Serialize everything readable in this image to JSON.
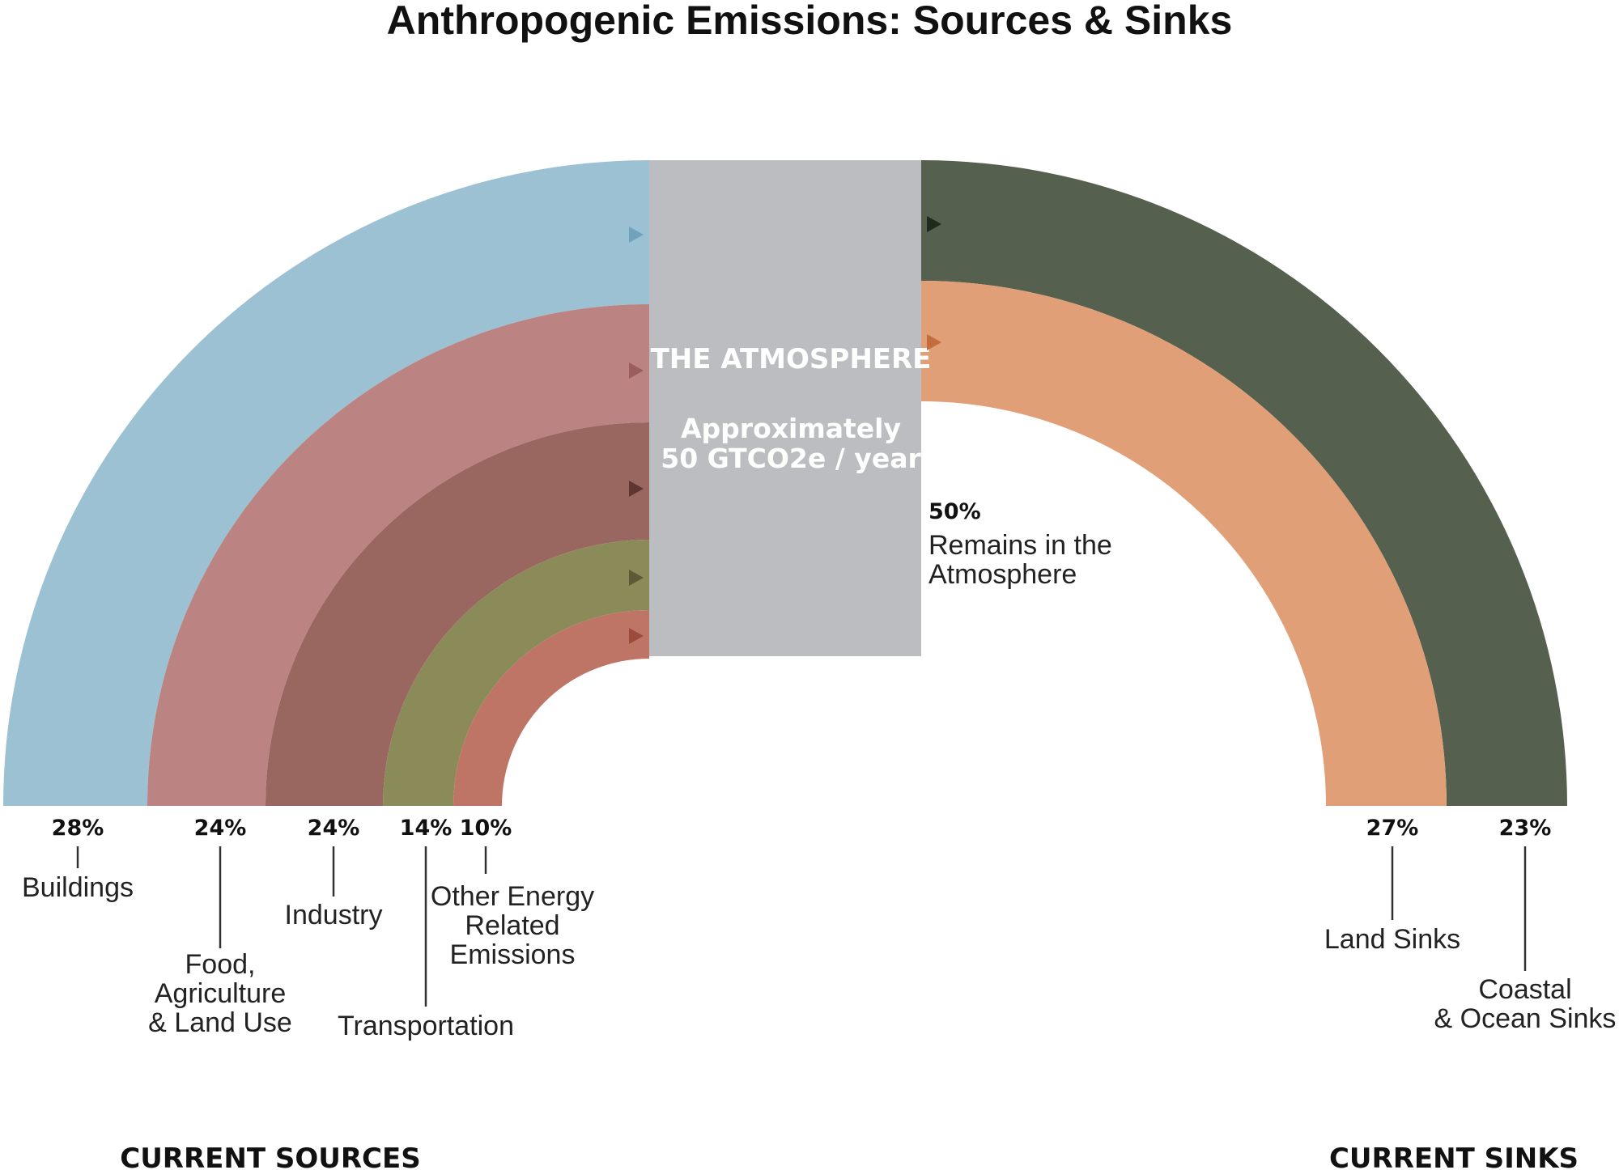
{
  "title": "Anthropogenic Emissions: Sources & Sinks",
  "atmosphere": {
    "title": "THE ATMOSPHERE",
    "line1": "Approximately",
    "line2": "50 GTCO2e / year",
    "color": "#BBBDC0"
  },
  "chart_data": {
    "type": "diagram",
    "sources": [
      {
        "percent": "28%",
        "label": [
          "Buildings"
        ],
        "value": 28,
        "color": "#9CC1D3",
        "arrow_color": "#6FA3BD"
      },
      {
        "percent": "24%",
        "label": [
          "Food,",
          "Agriculture",
          "& Land Use"
        ],
        "value": 24,
        "color": "#BB8482",
        "arrow_color": "#9B5E5C"
      },
      {
        "percent": "24%",
        "label": [
          "Industry"
        ],
        "value": 24,
        "color": "#9A6760",
        "arrow_color": "#5E3631"
      },
      {
        "percent": "14%",
        "label": [
          "Transportation"
        ],
        "value": 14,
        "color": "#8A8B58",
        "arrow_color": "#5A5B35"
      },
      {
        "percent": "10%",
        "label": [
          "Other Energy",
          "Related",
          "Emissions"
        ],
        "value": 10,
        "color": "#BE7566",
        "arrow_color": "#9E4A3A"
      }
    ],
    "sinks": [
      {
        "percent": "23%",
        "label": [
          "Coastal",
          "& Ocean Sinks"
        ],
        "value": 23,
        "color": "#55604E",
        "arrow_color": "#1F2A1A"
      },
      {
        "percent": "27%",
        "label": [
          "Land Sinks"
        ],
        "value": 27,
        "color": "#E09F77",
        "arrow_color": "#C26D3E"
      }
    ],
    "remains": {
      "percent": "50%",
      "label": [
        "Remains in the",
        "Atmosphere"
      ],
      "value": 50
    }
  },
  "footer": {
    "sources": "CURRENT SOURCES",
    "sinks": "CURRENT SINKS"
  }
}
